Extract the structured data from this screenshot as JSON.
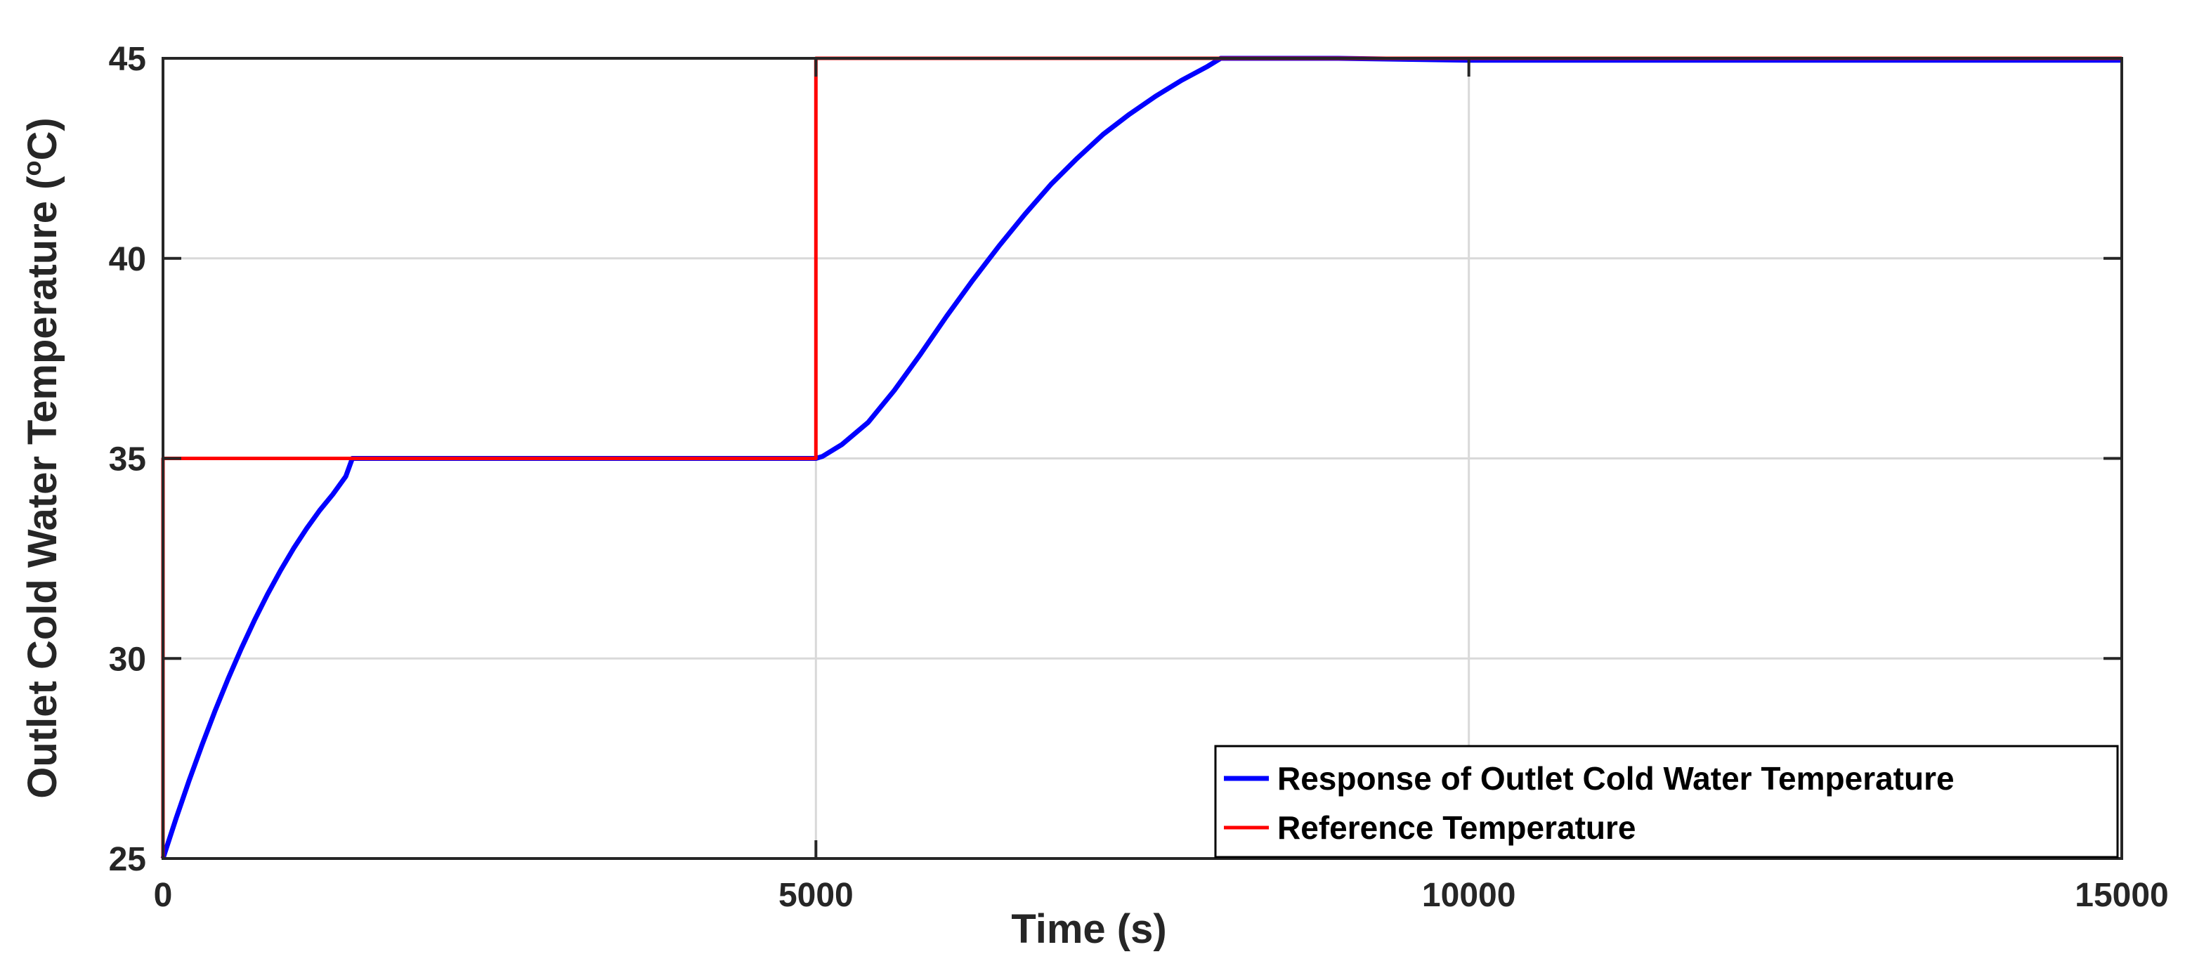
{
  "chart_data": {
    "type": "line",
    "xlabel": "Time (s)",
    "ylabel": "Outlet Cold Water Temperature (",
    "ylabel_sup": "o",
    "ylabel_unit": "C)",
    "xlim": [
      0,
      15000
    ],
    "ylim": [
      25,
      45
    ],
    "xticks": [
      0,
      5000,
      10000,
      15000
    ],
    "xtick_labels": [
      "0",
      "5000",
      "10000",
      "15000"
    ],
    "yticks": [
      25,
      30,
      35,
      40,
      45
    ],
    "ytick_labels": [
      "25",
      "30",
      "35",
      "40",
      "45"
    ],
    "grid": true,
    "legend_position": "bottom-right",
    "series": [
      {
        "name": "Response of Outlet Cold Water Temperature",
        "color": "#0000ff",
        "x": [
          0,
          100,
          200,
          300,
          400,
          500,
          600,
          700,
          800,
          900,
          1000,
          1100,
          1200,
          1300,
          1400,
          1450,
          2000,
          3000,
          4000,
          5000,
          5050,
          5200,
          5400,
          5600,
          5800,
          6000,
          6200,
          6400,
          6600,
          6800,
          7000,
          7200,
          7400,
          7600,
          7800,
          8000,
          8100,
          9000,
          10000,
          11000,
          12000,
          13000,
          14000,
          15000
        ],
        "y": [
          25,
          26.0,
          26.95,
          27.85,
          28.7,
          29.5,
          30.25,
          30.95,
          31.6,
          32.2,
          32.75,
          33.25,
          33.7,
          34.1,
          34.55,
          35,
          35,
          35,
          35,
          35,
          35.05,
          35.35,
          35.9,
          36.7,
          37.6,
          38.55,
          39.45,
          40.3,
          41.1,
          41.85,
          42.5,
          43.1,
          43.6,
          44.05,
          44.45,
          44.8,
          45,
          45,
          44.95,
          44.95,
          44.95,
          44.95,
          44.95,
          44.95
        ]
      },
      {
        "name": "Reference Temperature",
        "color": "#ff0000",
        "x": [
          0,
          0,
          5000,
          5000,
          15000
        ],
        "y": [
          25,
          35,
          35,
          45,
          45
        ]
      }
    ]
  }
}
